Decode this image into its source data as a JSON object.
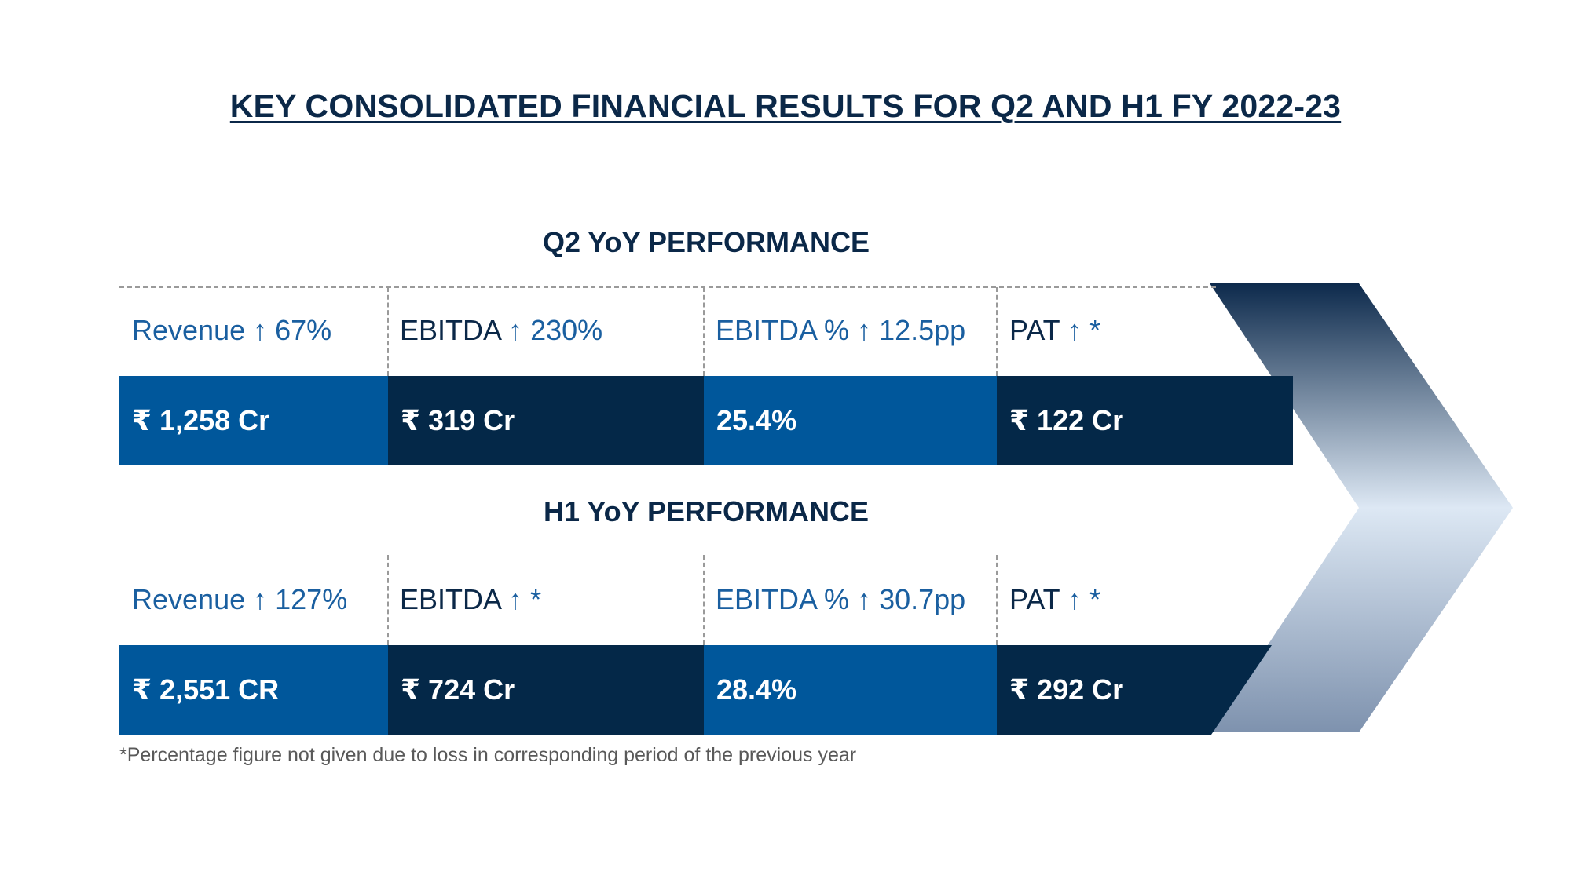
{
  "title": "KEY CONSOLIDATED FINANCIAL RESULTS FOR Q2 AND H1 FY 2022-23",
  "colors": {
    "navy": "#042848",
    "blue": "#00579b",
    "label_blue": "#1a5fa0",
    "title": "#0b2848"
  },
  "q2": {
    "heading": "Q2 YoY PERFORMANCE",
    "metrics": [
      {
        "name": "Revenue",
        "arrow": "↑",
        "change": "67%",
        "value": "₹ 1,258 Cr"
      },
      {
        "name": "EBITDA",
        "arrow": "↑",
        "change": "230%",
        "value": "₹ 319 Cr"
      },
      {
        "name": "EBITDA %",
        "arrow": "↑",
        "change": "12.5pp",
        "value": "25.4%"
      },
      {
        "name": "PAT",
        "arrow": "↑",
        "change": "*",
        "value": "₹ 122 Cr"
      }
    ]
  },
  "h1": {
    "heading": "H1 YoY PERFORMANCE",
    "metrics": [
      {
        "name": "Revenue",
        "arrow": "↑",
        "change": "127%",
        "value": "₹ 2,551 CR"
      },
      {
        "name": "EBITDA",
        "arrow": "↑",
        "change": "*",
        "value": "₹ 724 Cr"
      },
      {
        "name": "EBITDA %",
        "arrow": "↑",
        "change": "30.7pp",
        "value": "28.4%"
      },
      {
        "name": "PAT",
        "arrow": "↑",
        "change": "*",
        "value": "₹ 292 Cr"
      }
    ]
  },
  "footnote": "*Percentage figure not given due to loss in corresponding period of the previous year"
}
